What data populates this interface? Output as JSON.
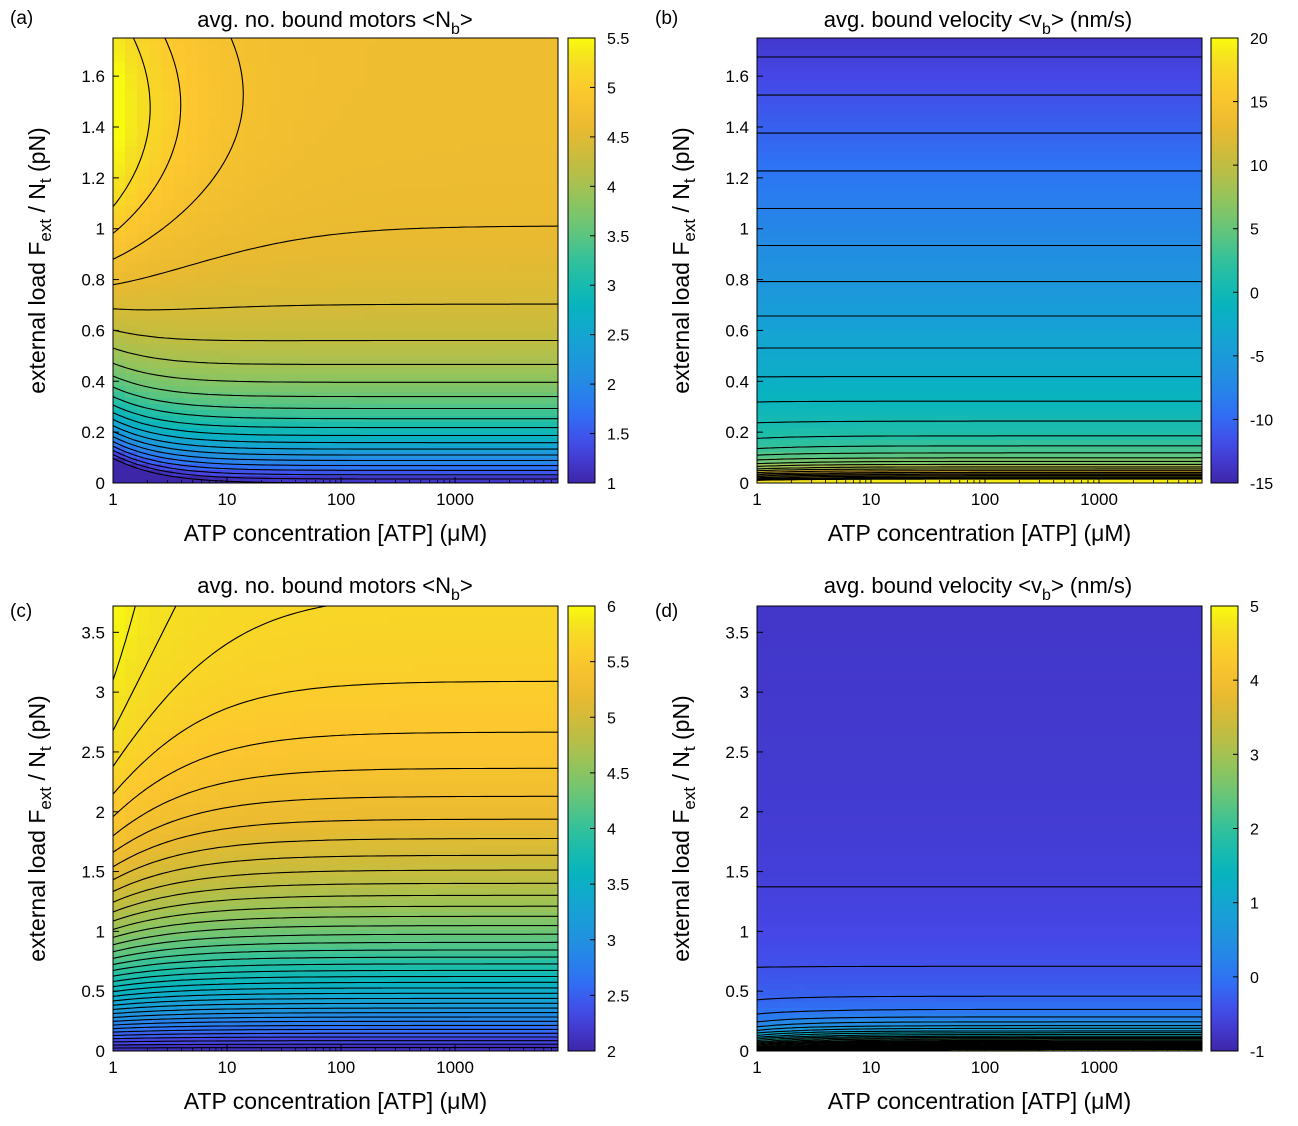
{
  "chart_data": [
    {
      "type": "heatmap",
      "panel": "(a)",
      "title": "avg. no. bound motors  <N_b>",
      "title_main": "avg. no. bound motors  <N",
      "title_sub": "b",
      "title_end": ">",
      "xlabel": "ATP concentration  [ATP] (μM)",
      "ylabel": "external load  F_ext / N_t (pN)",
      "x_scale": "log",
      "xlim": [
        1,
        8000
      ],
      "ylim": [
        0,
        1.75
      ],
      "x_ticks": [
        1,
        10,
        100,
        1000
      ],
      "x_tick_labels": [
        "1",
        "10",
        "100",
        "1000"
      ],
      "y_ticks": [
        0,
        0.2,
        0.4,
        0.6,
        0.8,
        1,
        1.2,
        1.4,
        1.6
      ],
      "y_tick_labels": [
        "0",
        "0.2",
        "0.4",
        "0.6",
        "0.8",
        "1",
        "1.2",
        "1.4",
        "1.6"
      ],
      "colorbar_range": [
        1,
        5.5
      ],
      "colorbar_ticks": [
        1,
        1.5,
        2,
        2.5,
        3,
        3.5,
        4,
        4.5,
        5,
        5.5
      ],
      "colorbar_tick_labels": [
        "1",
        "1.5",
        "2",
        "2.5",
        "3",
        "3.5",
        "4",
        "4.5",
        "5",
        "5.5"
      ],
      "colormap": "parula",
      "description": "Value rises with load at high ATP; near 1 at zero load, about 4.7 at high load; maximum about 5.3 at low ATP and load ~1.5 pN"
    },
    {
      "type": "heatmap",
      "panel": "(b)",
      "title": "avg. bound velocity <v_b>  (nm/s)",
      "title_main": "avg. bound velocity <v",
      "title_sub": "b",
      "title_end": ">  (nm/s)",
      "xlabel": "ATP concentration  [ATP] (μM)",
      "ylabel": "external load  F_ext / N_t (pN)",
      "x_scale": "log",
      "xlim": [
        1,
        8000
      ],
      "ylim": [
        0,
        1.75
      ],
      "x_ticks": [
        1,
        10,
        100,
        1000
      ],
      "x_tick_labels": [
        "1",
        "10",
        "100",
        "1000"
      ],
      "y_ticks": [
        0,
        0.2,
        0.4,
        0.6,
        0.8,
        1,
        1.2,
        1.4,
        1.6
      ],
      "y_tick_labels": [
        "0",
        "0.2",
        "0.4",
        "0.6",
        "0.8",
        "1",
        "1.2",
        "1.4",
        "1.6"
      ],
      "colorbar_range": [
        -15,
        20
      ],
      "colorbar_ticks": [
        -15,
        -10,
        -5,
        0,
        5,
        10,
        15,
        20
      ],
      "colorbar_tick_labels": [
        "-15",
        "-10",
        "-5",
        "0",
        "5",
        "10",
        "15",
        "20"
      ],
      "colormap": "parula",
      "description": "Velocity high (~20 nm/s) near zero load at high ATP, decreasing to about -14 nm/s at highest load"
    },
    {
      "type": "heatmap",
      "panel": "(c)",
      "title": "avg. no. bound motors  <N_b>",
      "title_main": "avg. no. bound motors  <N",
      "title_sub": "b",
      "title_end": ">",
      "xlabel": "ATP concentration  [ATP] (μM)",
      "ylabel": "external load  F_ext / N_t (pN)",
      "x_scale": "log",
      "xlim": [
        1,
        8000
      ],
      "ylim": [
        0,
        3.72
      ],
      "x_ticks": [
        1,
        10,
        100,
        1000
      ],
      "x_tick_labels": [
        "1",
        "10",
        "100",
        "1000"
      ],
      "y_ticks": [
        0,
        0.5,
        1,
        1.5,
        2,
        2.5,
        3,
        3.5
      ],
      "y_tick_labels": [
        "0",
        "0.5",
        "1",
        "1.5",
        "2",
        "2.5",
        "3",
        "3.5"
      ],
      "colorbar_range": [
        2,
        6
      ],
      "colorbar_ticks": [
        2,
        2.5,
        3,
        3.5,
        4,
        4.5,
        5,
        5.5,
        6
      ],
      "colorbar_tick_labels": [
        "2",
        "2.5",
        "3",
        "3.5",
        "4",
        "4.5",
        "5",
        "5.5",
        "6"
      ],
      "colormap": "parula",
      "description": "Value rises with load from about 2 at zero load to about 5.8 at highest load"
    },
    {
      "type": "heatmap",
      "panel": "(d)",
      "title": "avg. bound velocity <v_b> (nm/s)",
      "title_main": "avg. bound velocity <v",
      "title_sub": "b",
      "title_end": "> (nm/s)",
      "xlabel": "ATP concentration  [ATP] (μM)",
      "ylabel": "external load  F_ext / N_t (pN)",
      "x_scale": "log",
      "xlim": [
        1,
        8000
      ],
      "ylim": [
        0,
        3.72
      ],
      "x_ticks": [
        1,
        10,
        100,
        1000
      ],
      "x_tick_labels": [
        "1",
        "10",
        "100",
        "1000"
      ],
      "y_ticks": [
        0,
        0.5,
        1,
        1.5,
        2,
        2.5,
        3,
        3.5
      ],
      "y_tick_labels": [
        "0",
        "0.5",
        "1",
        "1.5",
        "2",
        "2.5",
        "3",
        "3.5"
      ],
      "colorbar_range": [
        -1,
        5
      ],
      "colorbar_ticks": [
        -1,
        0,
        1,
        2,
        3,
        4,
        5
      ],
      "colorbar_tick_labels": [
        "-1",
        "0",
        "1",
        "2",
        "3",
        "4",
        "5"
      ],
      "colormap": "parula",
      "description": "Velocity about 5 nm/s near zero load at high ATP, dropping quickly to about -0.7 nm/s at higher loads"
    }
  ]
}
